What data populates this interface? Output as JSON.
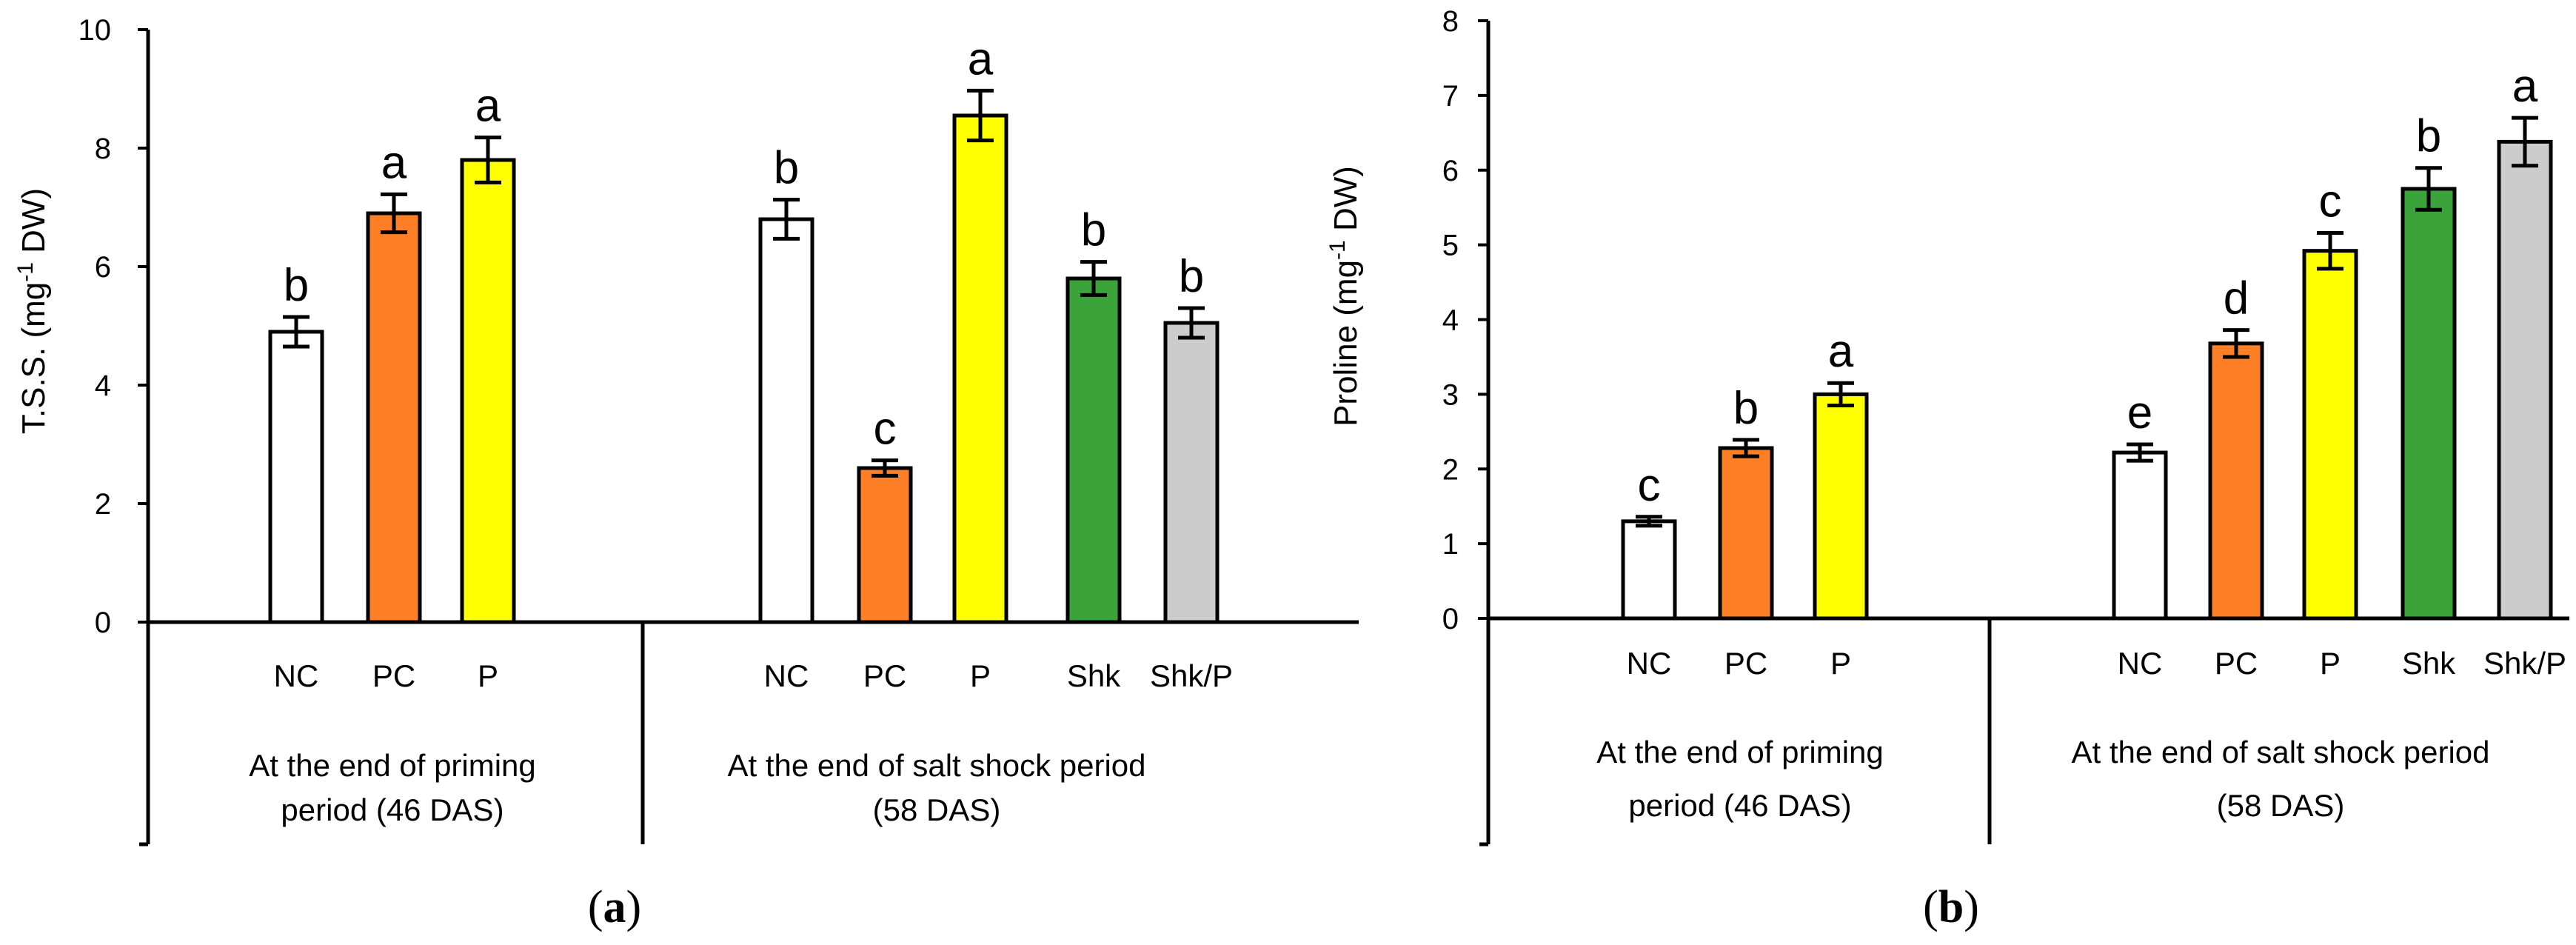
{
  "chart_data": [
    {
      "type": "bar",
      "panel": "a",
      "ylabel_main": "T.S.S. (mg",
      "ylabel_sup": "-1",
      "ylabel_end": " DW)",
      "ylim": [
        0,
        10
      ],
      "yticks": [
        "0",
        "2",
        "4",
        "6",
        "8",
        "10"
      ],
      "groups": [
        {
          "label_lines": [
            "At the end of priming",
            "period (46 DAS)"
          ],
          "bars": [
            {
              "category": "NC",
              "value": 4.9,
              "error": 0.25,
              "letter": "b",
              "color": "#ffffff"
            },
            {
              "category": "PC",
              "value": 6.9,
              "error": 0.32,
              "letter": "a",
              "color": "#ff7f27"
            },
            {
              "category": "P",
              "value": 7.8,
              "error": 0.38,
              "letter": "a",
              "color": "#ffff00"
            }
          ]
        },
        {
          "label_lines": [
            "At the end of salt shock period",
            "(58 DAS)"
          ],
          "bars": [
            {
              "category": "NC",
              "value": 6.8,
              "error": 0.33,
              "letter": "b",
              "color": "#ffffff"
            },
            {
              "category": "PC",
              "value": 2.6,
              "error": 0.13,
              "letter": "c",
              "color": "#ff7f27"
            },
            {
              "category": "P",
              "value": 8.55,
              "error": 0.42,
              "letter": "a",
              "color": "#ffff00"
            },
            {
              "category": "Shk",
              "value": 5.8,
              "error": 0.28,
              "letter": "b",
              "color": "#3aa33a"
            },
            {
              "category": "Shk/P",
              "value": 5.05,
              "error": 0.25,
              "letter": "b",
              "color": "#cccccc"
            }
          ]
        }
      ]
    },
    {
      "type": "bar",
      "panel": "b",
      "ylabel_main": "Proline (mg",
      "ylabel_sup": "-1",
      "ylabel_end": " DW)",
      "ylim": [
        0,
        8
      ],
      "yticks": [
        "0",
        "1",
        "2",
        "3",
        "4",
        "5",
        "6",
        "7",
        "8"
      ],
      "groups": [
        {
          "label_lines": [
            "At the end of priming",
            "period (46 DAS)"
          ],
          "bars": [
            {
              "category": "NC",
              "value": 1.3,
              "error": 0.06,
              "letter": "c",
              "color": "#ffffff"
            },
            {
              "category": "PC",
              "value": 2.28,
              "error": 0.11,
              "letter": "b",
              "color": "#ff7f27"
            },
            {
              "category": "P",
              "value": 3.0,
              "error": 0.15,
              "letter": "a",
              "color": "#ffff00"
            }
          ]
        },
        {
          "label_lines": [
            "At the end of salt shock period",
            "(58 DAS)"
          ],
          "bars": [
            {
              "category": "NC",
              "value": 2.22,
              "error": 0.11,
              "letter": "e",
              "color": "#ffffff"
            },
            {
              "category": "PC",
              "value": 3.68,
              "error": 0.18,
              "letter": "d",
              "color": "#ff7f27"
            },
            {
              "category": "P",
              "value": 4.92,
              "error": 0.24,
              "letter": "c",
              "color": "#ffff00"
            },
            {
              "category": "Shk",
              "value": 5.75,
              "error": 0.28,
              "letter": "b",
              "color": "#3aa33a"
            },
            {
              "category": "Shk/P",
              "value": 6.38,
              "error": 0.32,
              "letter": "a",
              "color": "#cccccc"
            }
          ]
        }
      ]
    }
  ],
  "panel_labels": [
    {
      "open": "(",
      "letter": "a",
      "close": ")"
    },
    {
      "open": "(",
      "letter": "b",
      "close": ")"
    }
  ]
}
